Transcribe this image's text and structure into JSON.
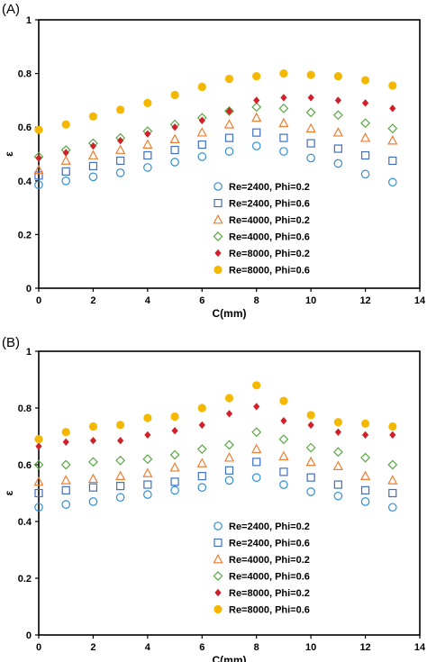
{
  "chart_data": [
    {
      "panel_label": "(A)",
      "type": "scatter",
      "xlabel": "C(mm)",
      "ylabel": "ε",
      "xlim": [
        0,
        14
      ],
      "ylim": [
        0,
        1
      ],
      "xticks": [
        0,
        2,
        4,
        6,
        8,
        10,
        12,
        14
      ],
      "yticks": [
        0,
        0.2,
        0.4,
        0.6,
        0.8,
        1
      ],
      "x": [
        0,
        1,
        2,
        3,
        4,
        5,
        6,
        7,
        8,
        9,
        10,
        11,
        12,
        13
      ],
      "legend_position": "bottom-right inside",
      "series": [
        {
          "name": "Re=2400, Phi=0.2",
          "marker": "circle-open",
          "color": "#2e8fd6",
          "values": [
            0.385,
            0.4,
            0.415,
            0.43,
            0.45,
            0.47,
            0.49,
            0.51,
            0.53,
            0.51,
            0.485,
            0.465,
            0.425,
            0.395
          ]
        },
        {
          "name": "Re=2400, Phi=0.6",
          "marker": "square-open",
          "color": "#3f6fc4",
          "values": [
            0.42,
            0.435,
            0.455,
            0.475,
            0.495,
            0.515,
            0.535,
            0.56,
            0.58,
            0.56,
            0.54,
            0.52,
            0.495,
            0.475
          ]
        },
        {
          "name": "Re=4000, Phi=0.2",
          "marker": "triangle-open",
          "color": "#ed7d31",
          "values": [
            0.44,
            0.475,
            0.495,
            0.515,
            0.535,
            0.555,
            0.58,
            0.61,
            0.635,
            0.615,
            0.595,
            0.58,
            0.56,
            0.55
          ]
        },
        {
          "name": "Re=4000, Phi=0.6",
          "marker": "diamond-open",
          "color": "#5aa844",
          "values": [
            0.49,
            0.515,
            0.54,
            0.56,
            0.585,
            0.61,
            0.635,
            0.66,
            0.675,
            0.67,
            0.655,
            0.645,
            0.615,
            0.595
          ]
        },
        {
          "name": "Re=8000, Phi=0.2",
          "marker": "diamond-filled",
          "color": "#d0202a",
          "values": [
            0.485,
            0.505,
            0.53,
            0.55,
            0.575,
            0.6,
            0.625,
            0.66,
            0.7,
            0.71,
            0.71,
            0.7,
            0.69,
            0.67
          ]
        },
        {
          "name": "Re=8000, Phi=0.6",
          "marker": "circle-filled",
          "color": "#f5b800",
          "values": [
            0.59,
            0.61,
            0.64,
            0.665,
            0.69,
            0.72,
            0.75,
            0.78,
            0.79,
            0.8,
            0.795,
            0.79,
            0.775,
            0.755
          ]
        }
      ]
    },
    {
      "panel_label": "(B)",
      "type": "scatter",
      "xlabel": "C(mm)",
      "ylabel": "ε",
      "xlim": [
        0,
        14
      ],
      "ylim": [
        0,
        1
      ],
      "xticks": [
        0,
        2,
        4,
        6,
        8,
        10,
        12,
        14
      ],
      "yticks": [
        0,
        0.2,
        0.4,
        0.6,
        0.8,
        1
      ],
      "x": [
        0,
        1,
        2,
        3,
        4,
        5,
        6,
        7,
        8,
        9,
        10,
        11,
        12,
        13
      ],
      "legend_position": "bottom-right inside",
      "series": [
        {
          "name": "Re=2400, Phi=0.2",
          "marker": "circle-open",
          "color": "#2e8fd6",
          "values": [
            0.45,
            0.46,
            0.47,
            0.485,
            0.495,
            0.51,
            0.52,
            0.545,
            0.555,
            0.53,
            0.505,
            0.49,
            0.47,
            0.45
          ]
        },
        {
          "name": "Re=2400, Phi=0.6",
          "marker": "square-open",
          "color": "#3f6fc4",
          "values": [
            0.5,
            0.51,
            0.52,
            0.525,
            0.53,
            0.54,
            0.56,
            0.58,
            0.61,
            0.575,
            0.555,
            0.53,
            0.51,
            0.5
          ]
        },
        {
          "name": "Re=4000, Phi=0.2",
          "marker": "triangle-open",
          "color": "#ed7d31",
          "values": [
            0.54,
            0.545,
            0.55,
            0.56,
            0.57,
            0.59,
            0.605,
            0.625,
            0.655,
            0.63,
            0.61,
            0.595,
            0.56,
            0.545
          ]
        },
        {
          "name": "Re=4000, Phi=0.6",
          "marker": "diamond-open",
          "color": "#5aa844",
          "values": [
            0.6,
            0.6,
            0.61,
            0.615,
            0.62,
            0.635,
            0.655,
            0.67,
            0.715,
            0.69,
            0.66,
            0.645,
            0.625,
            0.6
          ]
        },
        {
          "name": "Re=8000, Phi=0.2",
          "marker": "diamond-filled",
          "color": "#d0202a",
          "values": [
            0.665,
            0.68,
            0.685,
            0.685,
            0.705,
            0.72,
            0.74,
            0.78,
            0.805,
            0.755,
            0.74,
            0.715,
            0.705,
            0.705
          ]
        },
        {
          "name": "Re=8000, Phi=0.6",
          "marker": "circle-filled",
          "color": "#f5b800",
          "values": [
            0.69,
            0.715,
            0.735,
            0.74,
            0.765,
            0.77,
            0.8,
            0.835,
            0.88,
            0.825,
            0.775,
            0.75,
            0.745,
            0.735
          ]
        }
      ]
    }
  ]
}
